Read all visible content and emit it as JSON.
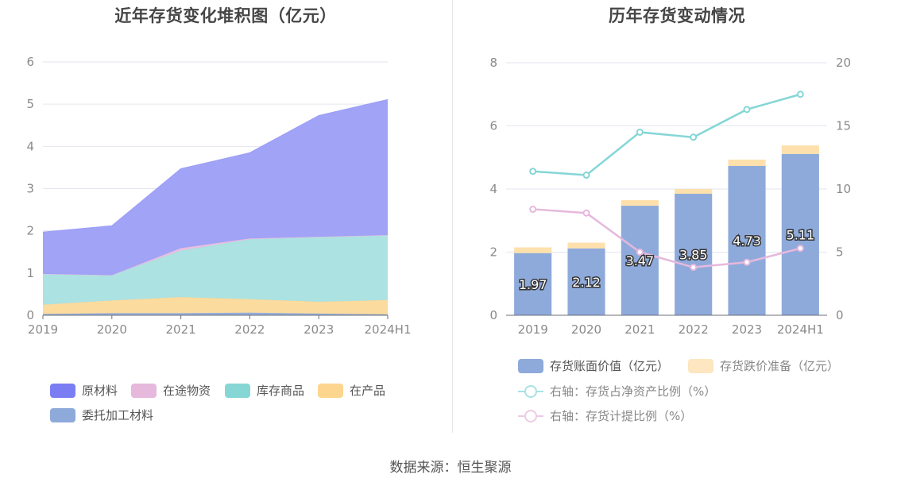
{
  "source_text": "数据来源：恒生聚源",
  "chart_data": [
    {
      "type": "area",
      "title": "近年存货变化堆积图（亿元）",
      "categories": [
        "2019",
        "2020",
        "2021",
        "2022",
        "2023",
        "2024H1"
      ],
      "y_ticks": [
        "0",
        "1",
        "2",
        "3",
        "4",
        "5",
        "6"
      ],
      "ylim": [
        0,
        6
      ],
      "stacked": true,
      "grid": true,
      "legend_position": "bottom",
      "series": [
        {
          "name": "委托加工材料",
          "color": "#8eaadb",
          "values": [
            0.03,
            0.05,
            0.05,
            0.06,
            0.04,
            0.02
          ]
        },
        {
          "name": "在产品",
          "color": "#fcd999",
          "values": [
            0.22,
            0.3,
            0.38,
            0.32,
            0.28,
            0.34
          ]
        },
        {
          "name": "库存商品",
          "color": "#a8e0e0",
          "values": [
            0.73,
            0.6,
            1.1,
            1.42,
            1.53,
            1.53
          ]
        },
        {
          "name": "在途物资",
          "color": "#e6bde0",
          "values": [
            0.0,
            0.0,
            0.06,
            0.02,
            0.01,
            0.01
          ]
        },
        {
          "name": "原材料",
          "color": "#9c9ef6",
          "values": [
            0.99,
            1.17,
            1.88,
            2.03,
            2.87,
            3.21
          ]
        }
      ],
      "legend": [
        {
          "name": "原材料",
          "color": "#7b7ef3"
        },
        {
          "name": "在途物资",
          "color": "#e6b8dc"
        },
        {
          "name": "库存商品",
          "color": "#86d6d6"
        },
        {
          "name": "在产品",
          "color": "#fcd58f"
        },
        {
          "name": "委托加工材料",
          "color": "#8eaadb"
        }
      ]
    },
    {
      "type": "bar+line",
      "title": "历年存货变动情况",
      "categories": [
        "2019",
        "2020",
        "2021",
        "2022",
        "2023",
        "2024H1"
      ],
      "y_left_ticks": [
        "0",
        "2",
        "4",
        "6",
        "8"
      ],
      "y_right_ticks": [
        "0",
        "5",
        "10",
        "15",
        "20"
      ],
      "ylim_left": [
        0,
        8
      ],
      "ylim_right": [
        0,
        20
      ],
      "grid": true,
      "legend_position": "bottom",
      "bars": [
        {
          "name": "存货账面价值（亿元）",
          "color": "#8eaadb",
          "values": [
            1.97,
            2.12,
            3.47,
            3.85,
            4.73,
            5.11
          ],
          "labels": [
            "1.97",
            "2.12",
            "3.47",
            "3.85",
            "4.73",
            "5.11"
          ]
        },
        {
          "name": "存货跌价准备（亿元）",
          "color": "#fde0ab",
          "values": [
            0.18,
            0.18,
            0.18,
            0.15,
            0.2,
            0.27
          ]
        }
      ],
      "lines": [
        {
          "name": "右轴：存货占净资产比例（%）",
          "color": "#86d6d6",
          "values": [
            11.4,
            11.1,
            14.5,
            14.1,
            16.3,
            17.5
          ]
        },
        {
          "name": "右轴：存货计提比例（%）",
          "color": "#e6b8dc",
          "values": [
            8.4,
            8.1,
            5.0,
            3.8,
            4.2,
            5.3
          ]
        }
      ]
    }
  ]
}
